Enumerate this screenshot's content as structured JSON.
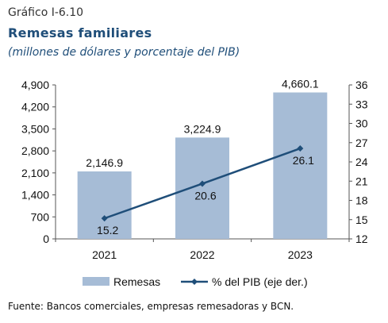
{
  "header": {
    "figure_label": "Gráfico I-6.10",
    "title": "Remesas familiares",
    "subtitle": "(millones de dólares y porcentaje del PIB)"
  },
  "source": "Fuente: Bancos comerciales, empresas remesadoras y BCN.",
  "colors": {
    "bar": "#a6bcd6",
    "line": "#1f4e79",
    "axis": "#555555"
  },
  "chart_data": {
    "type": "bar",
    "categories": [
      "2021",
      "2022",
      "2023"
    ],
    "series": [
      {
        "name": "Remesas",
        "type": "bar",
        "axis": "left",
        "values": [
          2146.9,
          3224.9,
          4660.1
        ],
        "labels": [
          "2,146.9",
          "3,224.9",
          "4,660.1"
        ]
      },
      {
        "name": "% del PIB (eje der.)",
        "type": "line",
        "axis": "right",
        "values": [
          15.2,
          20.6,
          26.1
        ],
        "labels": [
          "15.2",
          "20.6",
          "26.1"
        ]
      }
    ],
    "y_left": {
      "min": 0,
      "max": 4900,
      "ticks": [
        "0",
        "700",
        "1,400",
        "2,100",
        "2,800",
        "3,500",
        "4,200",
        "4,900"
      ]
    },
    "y_right": {
      "min": 12,
      "max": 36,
      "ticks": [
        "12",
        "15",
        "18",
        "21",
        "24",
        "27",
        "30",
        "33",
        "36"
      ]
    },
    "legend_position": "bottom",
    "grid": false
  }
}
